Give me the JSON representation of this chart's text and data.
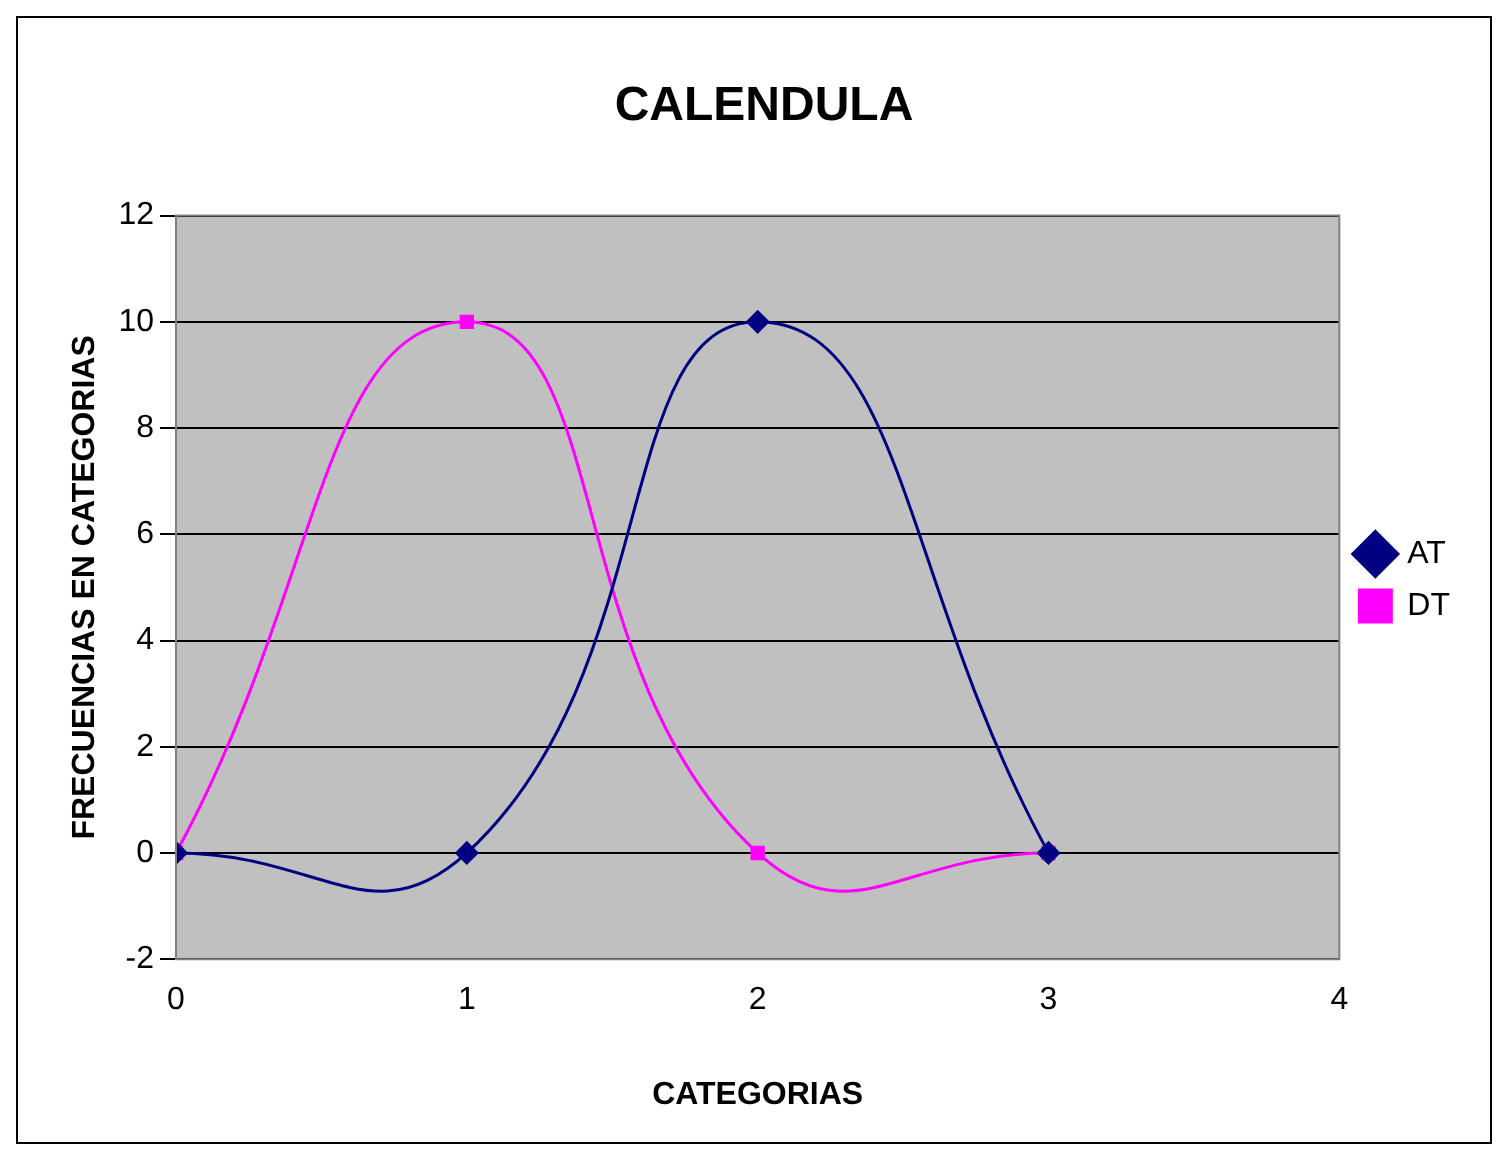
{
  "chart_data": {
    "type": "line",
    "title": "CALENDULA",
    "xlabel": "CATEGORIAS",
    "ylabel": "FRECUENCIAS EN CATEGORIAS",
    "series": [
      {
        "name": "AT",
        "color": "#000080",
        "marker": "diamond",
        "x": [
          0,
          1,
          2,
          3
        ],
        "values": [
          0,
          0,
          10,
          0
        ]
      },
      {
        "name": "DT",
        "color": "#ff00ff",
        "marker": "square",
        "x": [
          0,
          1,
          2,
          3
        ],
        "values": [
          0,
          10,
          0,
          0
        ]
      }
    ],
    "xlim": [
      0,
      4
    ],
    "xticks": [
      0,
      1,
      2,
      3,
      4
    ],
    "ylim": [
      -2,
      12
    ],
    "yticks": [
      -2,
      0,
      2,
      4,
      6,
      8,
      10,
      12
    ],
    "grid": "y",
    "legend": "right"
  }
}
